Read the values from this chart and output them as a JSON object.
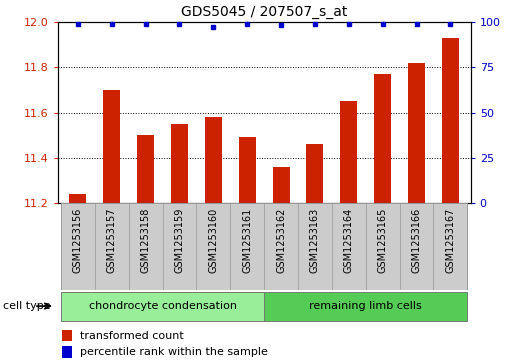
{
  "title": "GDS5045 / 207507_s_at",
  "samples": [
    "GSM1253156",
    "GSM1253157",
    "GSM1253158",
    "GSM1253159",
    "GSM1253160",
    "GSM1253161",
    "GSM1253162",
    "GSM1253163",
    "GSM1253164",
    "GSM1253165",
    "GSM1253166",
    "GSM1253167"
  ],
  "transformed_count": [
    11.24,
    11.7,
    11.5,
    11.55,
    11.58,
    11.49,
    11.36,
    11.46,
    11.65,
    11.77,
    11.82,
    11.93
  ],
  "percentile_values": [
    99,
    99,
    99,
    99,
    97,
    99,
    98,
    99,
    99,
    99,
    99,
    99
  ],
  "ylim_left": [
    11.2,
    12.0
  ],
  "ylim_right": [
    0,
    100
  ],
  "yticks_left": [
    11.2,
    11.4,
    11.6,
    11.8,
    12.0
  ],
  "yticks_right": [
    0,
    25,
    50,
    75,
    100
  ],
  "bar_color": "#cc2200",
  "dot_color": "#0000cc",
  "group1_label": "chondrocyte condensation",
  "group2_label": "remaining limb cells",
  "group1_color": "#99ee99",
  "group2_color": "#55cc55",
  "cell_type_label": "cell type",
  "legend1": "transformed count",
  "legend2": "percentile rank within the sample",
  "bar_width": 0.5,
  "sample_box_color": "#cccccc",
  "title_fontsize": 10,
  "tick_fontsize": 8,
  "label_fontsize": 7,
  "group_fontsize": 8
}
